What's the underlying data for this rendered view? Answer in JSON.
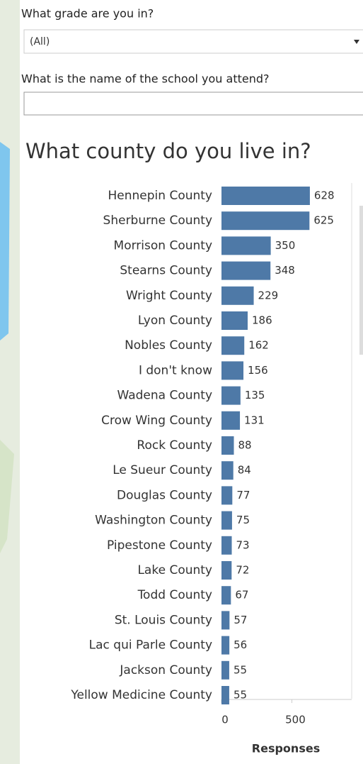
{
  "filters": [
    {
      "label": "What grade are you in?",
      "value": "(All)"
    },
    {
      "label": "What is the name of the school you attend?"
    }
  ],
  "chart_data": {
    "type": "bar",
    "orientation": "horizontal",
    "title": "What county do you live in?",
    "categories": [
      "Hennepin County",
      "Sherburne County",
      "Morrison County",
      "Stearns County",
      "Wright County",
      "Lyon County",
      "Nobles County",
      "I don't know",
      "Wadena County",
      "Crow Wing County",
      "Rock County",
      "Le Sueur County",
      "Douglas County",
      "Washington County",
      "Pipestone County",
      "Lake County",
      "Todd County",
      "St. Louis County",
      "Lac qui Parle County",
      "Jackson County",
      "Yellow Medicine County"
    ],
    "values": [
      628,
      625,
      350,
      348,
      229,
      186,
      162,
      156,
      135,
      131,
      88,
      84,
      77,
      75,
      73,
      72,
      67,
      57,
      56,
      55,
      55
    ],
    "color": "#4e79a7",
    "xlabel": "Responses",
    "xlim": [
      0,
      925
    ],
    "xticks": [
      0,
      500
    ]
  }
}
